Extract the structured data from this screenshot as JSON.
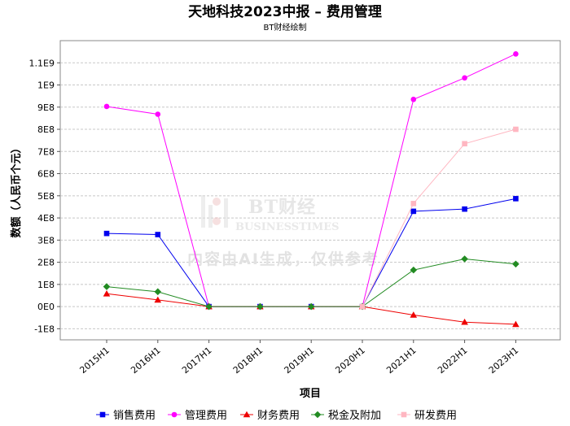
{
  "chart_data": {
    "type": "line",
    "title": "天地科技2023中报 – 费用管理",
    "subtitle": "BT财经绘制",
    "xlabel": "项目",
    "ylabel": "数额（人民币个元）",
    "categories": [
      "2015H1",
      "2016H1",
      "2017H1",
      "2018H1",
      "2019H1",
      "2020H1",
      "2021H1",
      "2022H1",
      "2023H1"
    ],
    "ylim": [
      -150000000,
      1200000000
    ],
    "yticks": [
      -100000000,
      0,
      100000000,
      200000000,
      300000000,
      400000000,
      500000000,
      600000000,
      700000000,
      800000000,
      900000000,
      1000000000,
      1100000000
    ],
    "ytick_labels": [
      "-1E8",
      "0E0",
      "1E8",
      "2E8",
      "3E8",
      "4E8",
      "5E8",
      "6E8",
      "7E8",
      "8E8",
      "9E8",
      "1E9",
      "1.1E9"
    ],
    "grid": true,
    "legend": "bottom",
    "series": [
      {
        "name": "销售费用",
        "color": "#0000ee",
        "marker": "square",
        "values": [
          330000000,
          325000000,
          0,
          0,
          0,
          0,
          430000000,
          440000000,
          487000000
        ]
      },
      {
        "name": "管理费用",
        "color": "#ff00ff",
        "marker": "circle",
        "values": [
          903000000,
          868000000,
          0,
          0,
          0,
          0,
          935000000,
          1032000000,
          1140000000
        ]
      },
      {
        "name": "财务费用",
        "color": "#ee0000",
        "marker": "triangle",
        "values": [
          58000000,
          30000000,
          0,
          0,
          0,
          0,
          -38000000,
          -70000000,
          -80000000
        ]
      },
      {
        "name": "税金及附加",
        "color": "#228b22",
        "marker": "diamond",
        "values": [
          90000000,
          67000000,
          0,
          0,
          0,
          0,
          165000000,
          215000000,
          192000000
        ]
      },
      {
        "name": "研发费用",
        "color": "#ffb6c1",
        "marker": "square",
        "values": [
          null,
          null,
          null,
          null,
          null,
          0,
          465000000,
          735000000,
          800000000
        ]
      }
    ]
  },
  "watermark": {
    "brand": "BT财经",
    "english": "BUSINESSTIMES",
    "text": "内容由AI生成，仅供参考"
  }
}
